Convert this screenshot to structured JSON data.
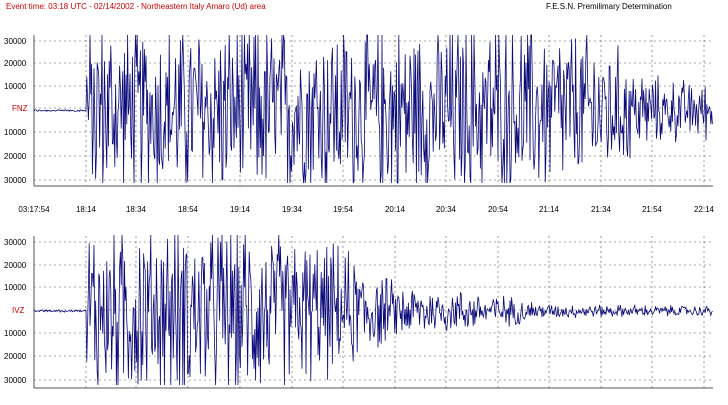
{
  "header": {
    "event_title": "Event time: 03:18 UTC - 02/14/2002 - Northeastern Italy Amaro (Ud) area",
    "agency": "F.E.S.N. Premilimary Determination"
  },
  "colors": {
    "trace": "#0a0a7a",
    "title_red": "#cc0000",
    "channel_red": "#cc0000",
    "grid": "#555555",
    "text": "#000000"
  },
  "chart_data": [
    {
      "type": "line",
      "channel": "FNZ",
      "x_tick_labels": [
        "03:17:54",
        "18:14",
        "18:34",
        "18:54",
        "19:14",
        "19:34",
        "19:54",
        "20:14",
        "20:34",
        "20:54",
        "21:14",
        "21:34",
        "21:54",
        "22:14"
      ],
      "y_tick_labels": [
        "30000",
        "20000",
        "10000",
        "FNZ",
        "10000",
        "20000",
        "30000"
      ],
      "ylim": [
        -33000,
        33000
      ],
      "clip_level": 33000,
      "onset_time_label": "18:14",
      "clipped_until_time_label": "21:04",
      "envelope": [
        {
          "t": "03:17:54",
          "amp": 0
        },
        {
          "t": "18:14",
          "amp": 33000
        },
        {
          "t": "21:04",
          "amp": 33000
        },
        {
          "t": "21:34",
          "amp": 27000
        },
        {
          "t": "21:54",
          "amp": 12000
        },
        {
          "t": "22:14",
          "amp": 10000
        }
      ]
    },
    {
      "type": "line",
      "channel": "IVZ",
      "x_tick_labels": [],
      "y_tick_labels": [
        "30000",
        "20000",
        "10000",
        "IVZ",
        "10000",
        "20000",
        "30000"
      ],
      "ylim": [
        -33000,
        33000
      ],
      "clip_level": 33000,
      "envelope": [
        {
          "t": "03:17:54",
          "amp": 0
        },
        {
          "t": "18:14",
          "amp": 33000
        },
        {
          "t": "19:14",
          "amp": 33000
        },
        {
          "t": "19:54",
          "amp": 22000
        },
        {
          "t": "20:14",
          "amp": 10000
        },
        {
          "t": "20:54",
          "amp": 6000
        },
        {
          "t": "21:14",
          "amp": 2500
        },
        {
          "t": "22:14",
          "amp": 1800
        }
      ]
    }
  ]
}
